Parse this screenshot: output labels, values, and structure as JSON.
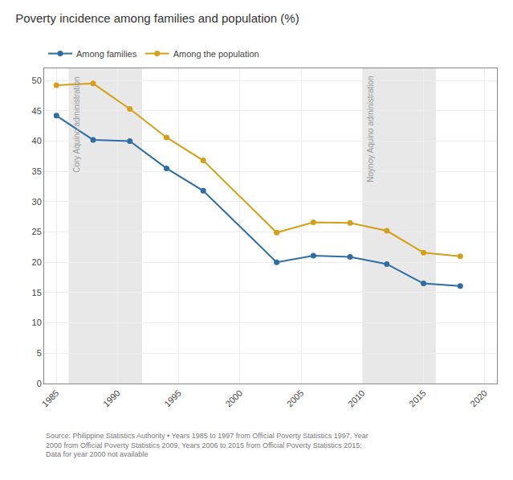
{
  "chart_data": {
    "type": "line",
    "title": "Poverty incidence among families and population (%)",
    "x": [
      1985,
      1988,
      1991,
      1994,
      1997,
      2003,
      2006,
      2009,
      2012,
      2015,
      2018
    ],
    "series": [
      {
        "name": "Among families",
        "color": "#2e6da4",
        "marker": "circle",
        "values": [
          44.2,
          40.2,
          40.0,
          35.5,
          31.8,
          20.0,
          21.1,
          20.9,
          19.7,
          16.5,
          16.1
        ]
      },
      {
        "name": "Among the population",
        "color": "#d4a017",
        "marker": "circle",
        "values": [
          49.2,
          49.5,
          45.3,
          40.6,
          36.8,
          24.9,
          26.6,
          26.5,
          25.2,
          21.6,
          21.0
        ]
      }
    ],
    "shaded_regions": [
      {
        "x": [
          1986,
          1992
        ],
        "label": "Cory Aquino administration",
        "color": "#e8e8e8"
      },
      {
        "x": [
          2010,
          2016
        ],
        "label": "Noynoy Aquino administration",
        "color": "#e8e8e8"
      }
    ],
    "xlim": [
      1984,
      2021
    ],
    "ylim": [
      0,
      52
    ],
    "xticks": [
      1985,
      1990,
      1995,
      2000,
      2005,
      2010,
      2015,
      2020
    ],
    "yticks": [
      0,
      5,
      10,
      15,
      20,
      25,
      30,
      35,
      40,
      45,
      50
    ],
    "grid": true,
    "legend": "top left",
    "source": "Source: Philippine Statistics Authority • Years 1985 to 1997 from Official Poverty Statistics 1997, Year\n2000 from Official Poverty Statistics 2009, Years 2006 to 2015 from Official Poverty Statistics 2015;\nData for year 2000 not available"
  }
}
